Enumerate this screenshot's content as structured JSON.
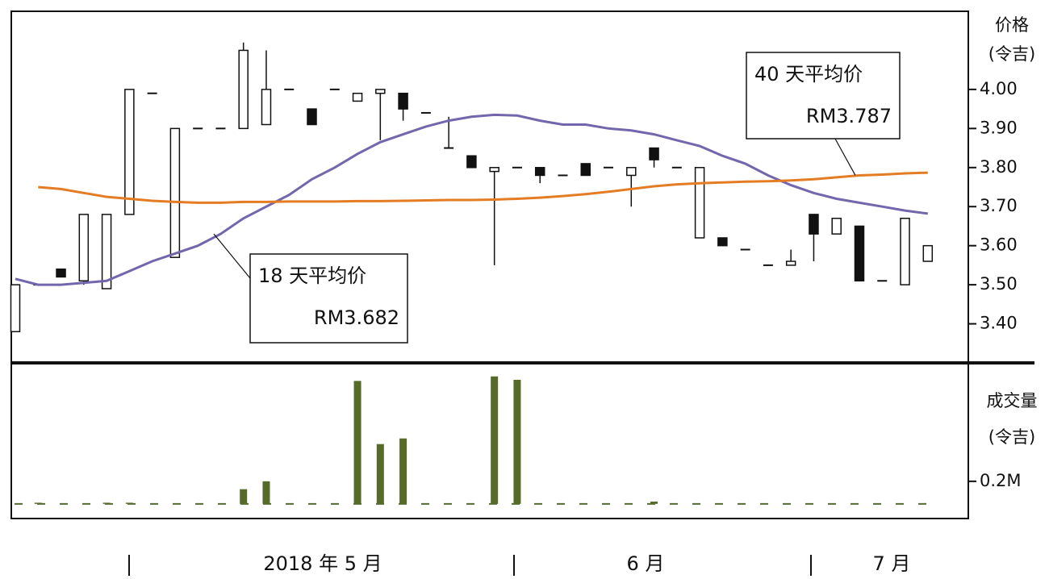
{
  "chart_data": [
    {
      "type": "candlestick",
      "ylabel": "价格",
      "ylabel_unit": "(令吉)",
      "categories": [
        null,
        null,
        null,
        null,
        null,
        null,
        null,
        null,
        null,
        null,
        null,
        null,
        null,
        null,
        null,
        null,
        null,
        null,
        null,
        null,
        null,
        null,
        null,
        null,
        null,
        null,
        null,
        null,
        null,
        null,
        null,
        null,
        null,
        null,
        null,
        null,
        null,
        null,
        null,
        null,
        null
      ],
      "open": [
        3.38,
        3.5,
        3.54,
        3.51,
        3.49,
        3.68,
        3.99,
        3.57,
        3.9,
        3.9,
        3.9,
        3.91,
        4.0,
        3.95,
        4.0,
        3.97,
        3.99,
        3.99,
        3.94,
        3.85,
        3.83,
        3.79,
        3.8,
        3.8,
        3.78,
        3.81,
        3.8,
        3.78,
        3.85,
        3.8,
        3.62,
        3.62,
        3.59,
        3.55,
        3.55,
        3.68,
        3.63,
        3.65,
        3.51,
        3.5,
        3.56
      ],
      "high": [
        3.5,
        3.5,
        3.54,
        3.68,
        3.68,
        4.0,
        3.99,
        3.9,
        3.9,
        3.9,
        4.12,
        4.1,
        4.0,
        3.95,
        4.0,
        3.99,
        4.0,
        3.99,
        3.94,
        3.93,
        3.83,
        3.8,
        3.8,
        3.8,
        3.78,
        3.81,
        3.8,
        3.8,
        3.85,
        3.8,
        3.8,
        3.62,
        3.59,
        3.55,
        3.59,
        3.68,
        3.67,
        3.65,
        3.51,
        3.67,
        3.6
      ],
      "low": [
        3.38,
        3.5,
        3.52,
        3.5,
        3.49,
        3.68,
        3.99,
        3.57,
        3.9,
        3.9,
        3.9,
        3.91,
        4.0,
        3.91,
        4.0,
        3.97,
        3.87,
        3.92,
        3.94,
        3.85,
        3.8,
        3.55,
        3.8,
        3.76,
        3.78,
        3.78,
        3.8,
        3.7,
        3.8,
        3.8,
        3.62,
        3.6,
        3.59,
        3.55,
        3.55,
        3.56,
        3.63,
        3.51,
        3.51,
        3.5,
        3.56
      ],
      "close": [
        3.5,
        3.5,
        3.52,
        3.68,
        3.68,
        4.0,
        3.99,
        3.9,
        3.9,
        3.9,
        4.1,
        4.0,
        4.0,
        3.91,
        4.0,
        3.99,
        4.0,
        3.95,
        3.94,
        3.85,
        3.8,
        3.8,
        3.8,
        3.78,
        3.78,
        3.78,
        3.8,
        3.8,
        3.82,
        3.8,
        3.8,
        3.6,
        3.59,
        3.55,
        3.56,
        3.63,
        3.67,
        3.51,
        3.51,
        3.67,
        3.6
      ],
      "series": [
        {
          "name": "18 天平均价",
          "last_label": "RM3.682",
          "color": "#7466ad",
          "values": [
            3.515,
            3.5,
            3.5,
            3.505,
            3.51,
            3.535,
            3.56,
            3.58,
            3.6,
            3.63,
            3.67,
            3.7,
            3.73,
            3.77,
            3.8,
            3.835,
            3.865,
            3.885,
            3.905,
            3.92,
            3.93,
            3.935,
            3.933,
            3.92,
            3.91,
            3.91,
            3.9,
            3.895,
            3.885,
            3.87,
            3.855,
            3.83,
            3.81,
            3.78,
            3.755,
            3.735,
            3.72,
            3.71,
            3.7,
            3.69,
            3.682
          ]
        },
        {
          "name": "40 天平均价",
          "last_label": "RM3.787",
          "color": "#e47c24",
          "values": [
            null,
            3.75,
            3.745,
            3.735,
            3.725,
            3.72,
            3.715,
            3.712,
            3.71,
            3.71,
            3.712,
            3.712,
            3.713,
            3.713,
            3.713,
            3.714,
            3.714,
            3.715,
            3.716,
            3.717,
            3.717,
            3.718,
            3.72,
            3.723,
            3.727,
            3.732,
            3.738,
            3.745,
            3.752,
            3.757,
            3.76,
            3.762,
            3.764,
            3.765,
            3.767,
            3.77,
            3.775,
            3.78,
            3.782,
            3.785,
            3.787
          ]
        }
      ],
      "ylim": [
        3.3,
        4.2
      ],
      "yticks": [
        {
          "value": 3.4,
          "label": "3.40"
        },
        {
          "value": 3.5,
          "label": "3.50"
        },
        {
          "value": 3.6,
          "label": "3.60"
        },
        {
          "value": 3.7,
          "label": "3.70"
        },
        {
          "value": 3.8,
          "label": "3.80"
        },
        {
          "value": 3.9,
          "label": "3.90"
        },
        {
          "value": 4.0,
          "label": "4.00"
        }
      ]
    },
    {
      "type": "bar",
      "ylabel": "成交量",
      "ylabel_unit": "(令吉)",
      "color": "#566b2a",
      "values": [
        0,
        0.01,
        0,
        0,
        0.01,
        0.01,
        0,
        0,
        0,
        0,
        0.13,
        0.2,
        0,
        0,
        0,
        1.09,
        0.53,
        0.58,
        0,
        0,
        0,
        1.13,
        1.1,
        0,
        0,
        0,
        0,
        0,
        0.02,
        0,
        0,
        0,
        0,
        0,
        0,
        0,
        0,
        0,
        0,
        0,
        0
      ],
      "ylim": [
        -0.13,
        1.25
      ],
      "yticks": [
        {
          "value": 0.2,
          "label": "0.2M"
        }
      ],
      "x_period_labels": [
        "2018 年 5 月",
        "6 月",
        "7 月"
      ]
    }
  ]
}
